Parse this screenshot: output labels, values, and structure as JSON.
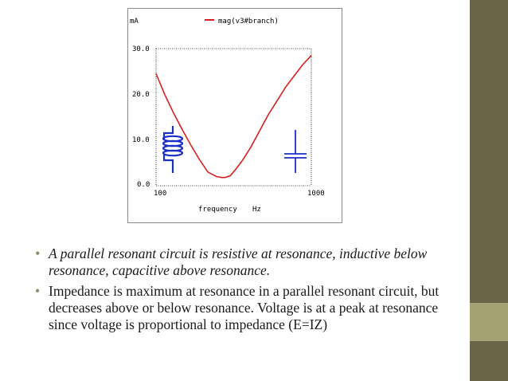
{
  "colors": {
    "trace": "#d42020",
    "inductor": "#1a2ec8",
    "capacitor": "#1a2ec8",
    "sidebar": "#6b6448",
    "sidebar_accent": "#a7a274",
    "bullet": "#8c8866"
  },
  "icons": [
    "inductor-coil-icon",
    "capacitor-icon"
  ],
  "chart_data": {
    "type": "line",
    "y_unit_label": "mA",
    "xlabel": "frequency",
    "x_unit_label": "Hz",
    "legend": {
      "name": "mag(v3#branch)",
      "placement": "top"
    },
    "x_tick_labels": [
      "100",
      "1000"
    ],
    "y_tick_labels": [
      "30.0",
      "20.0",
      "10.0",
      "0.0"
    ],
    "xlim": [
      100,
      1000
    ],
    "ylim": [
      0,
      30
    ],
    "grid": false,
    "series": [
      {
        "name": "mag(v3#branch)",
        "x": [
          100,
          150,
          200,
          250,
          300,
          350,
          400,
          450,
          480,
          500,
          530,
          560,
          600,
          650,
          700,
          750,
          800,
          850,
          900,
          950,
          1000
        ],
        "y": [
          24.5,
          20.0,
          16.0,
          12.4,
          9.0,
          5.8,
          3.0,
          2.0,
          1.8,
          1.8,
          2.2,
          3.5,
          5.5,
          8.5,
          12.0,
          15.5,
          18.5,
          21.5,
          24.0,
          26.5,
          28.5
        ]
      }
    ]
  },
  "bullets": [
    "A parallel resonant circuit is resistive at resonance, inductive below resonance, capacitive above resonance.",
    "Impedance is maximum at resonance in a parallel resonant circuit, but decreases above or below resonance. Voltage is at a peak at resonance since voltage is proportional to impedance (E=IZ)"
  ]
}
